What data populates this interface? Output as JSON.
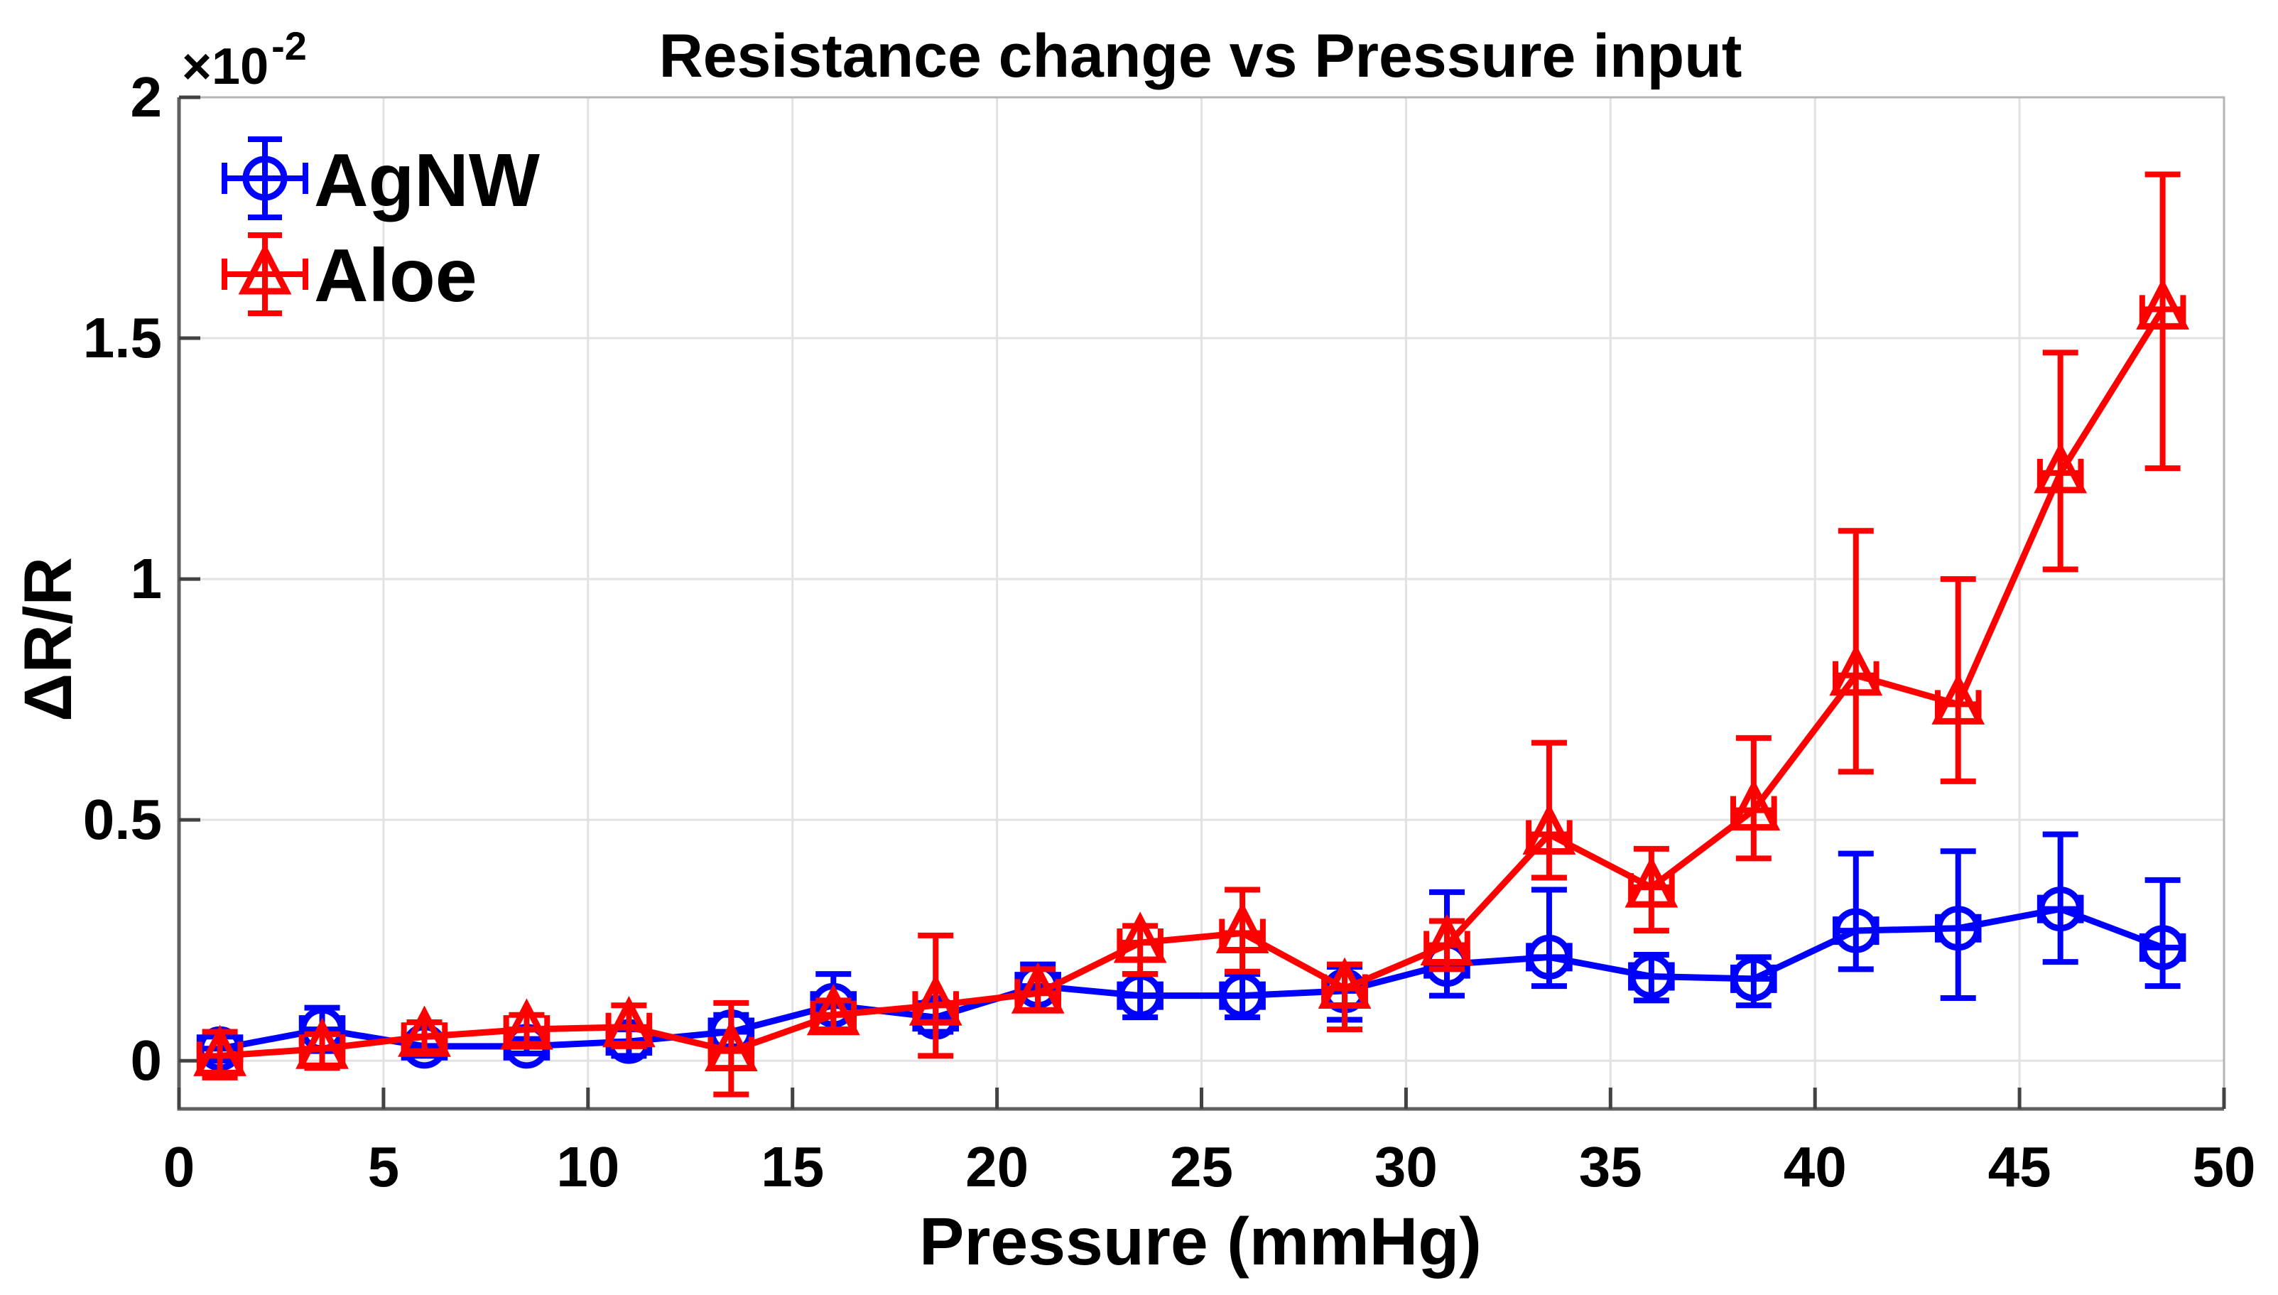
{
  "chart_data": {
    "type": "line",
    "title": "Resistance change vs Pressure input",
    "xlabel": "Pressure (mmHg)",
    "ylabel": "ΔR/R",
    "y_exponent_base": "×10",
    "y_exponent_sup": "-2",
    "y_scale_note": "y values are in units of 10^-2",
    "grid": true,
    "legend_position": "top-left-inside",
    "xlim": [
      0,
      50
    ],
    "ylim": [
      -0.1,
      2.0
    ],
    "xticks": [
      0,
      5,
      10,
      15,
      20,
      25,
      30,
      35,
      40,
      45,
      50
    ],
    "yticks": [
      0,
      0.5,
      1,
      1.5,
      2
    ],
    "ytick_labels": [
      "0",
      "0.5",
      "1",
      "1.5",
      "2"
    ],
    "x": [
      1,
      3.5,
      6,
      8.5,
      11,
      13.5,
      16,
      18.5,
      21,
      23.5,
      26,
      28.5,
      31,
      33.5,
      36,
      38.5,
      41,
      43.5,
      46,
      48.5
    ],
    "series": [
      {
        "name": "AgNW",
        "color": "#0000FF",
        "marker": "circle",
        "y": [
          0.025,
          0.065,
          0.03,
          0.03,
          0.04,
          0.06,
          0.115,
          0.09,
          0.155,
          0.135,
          0.135,
          0.145,
          0.2,
          0.215,
          0.175,
          0.17,
          0.27,
          0.275,
          0.315,
          0.235
        ],
        "err_up": [
          0.025,
          0.045,
          0.02,
          0.015,
          0.025,
          0.035,
          0.065,
          0.03,
          0.045,
          0.045,
          0.045,
          0.05,
          0.15,
          0.14,
          0.045,
          0.045,
          0.16,
          0.16,
          0.155,
          0.14
        ],
        "err_down": [
          0.025,
          0.045,
          0.02,
          0.015,
          0.03,
          0.03,
          0.05,
          0.03,
          0.05,
          0.045,
          0.045,
          0.06,
          0.065,
          0.06,
          0.05,
          0.055,
          0.08,
          0.145,
          0.11,
          0.08
        ],
        "xerr": 0.5
      },
      {
        "name": "Aloe",
        "color": "#FF0000",
        "marker": "triangle",
        "y": [
          0.01,
          0.025,
          0.05,
          0.065,
          0.07,
          0.02,
          0.095,
          0.115,
          0.14,
          0.245,
          0.265,
          0.15,
          0.24,
          0.47,
          0.36,
          0.52,
          0.8,
          0.74,
          1.22,
          1.56
        ],
        "err_up": [
          0.05,
          0.03,
          0.03,
          0.03,
          0.045,
          0.1,
          0.03,
          0.145,
          0.05,
          0.035,
          0.09,
          0.05,
          0.05,
          0.19,
          0.08,
          0.15,
          0.3,
          0.26,
          0.25,
          0.28
        ],
        "err_down": [
          0.045,
          0.04,
          0.03,
          0.03,
          0.04,
          0.09,
          0.03,
          0.105,
          0.035,
          0.065,
          0.08,
          0.085,
          0.05,
          0.09,
          0.09,
          0.1,
          0.2,
          0.16,
          0.2,
          0.33
        ],
        "xerr": 0.5
      }
    ]
  }
}
